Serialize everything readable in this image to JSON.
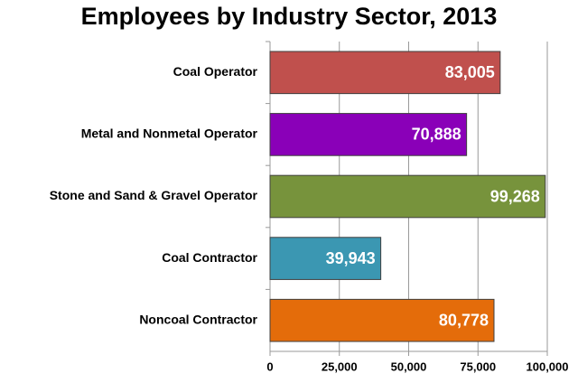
{
  "chart_data": {
    "type": "barh",
    "title": "Employees by Industry Sector, 2013",
    "categories": [
      "Coal Operator",
      "Metal and Nonmetal Operator",
      "Stone and Sand & Gravel Operator",
      "Coal Contractor",
      "Noncoal Contractor"
    ],
    "values": [
      83005,
      70888,
      99268,
      39943,
      80778
    ],
    "value_labels": [
      "83,005",
      "70,888",
      "99,268",
      "39,943",
      "80,778"
    ],
    "colors": [
      "#c0504d",
      "#8a00b8",
      "#77933c",
      "#3b97b2",
      "#e46c0a"
    ],
    "xlim": [
      0,
      100000
    ],
    "xticks": [
      0,
      {
        "value": 25000,
        "label": "25,000"
      },
      {
        "value": 50000,
        "label": "50,000"
      },
      {
        "value": 75000,
        "label": "75,000"
      },
      {
        "value": 100000,
        "label": "100,000"
      }
    ],
    "grid": true
  }
}
